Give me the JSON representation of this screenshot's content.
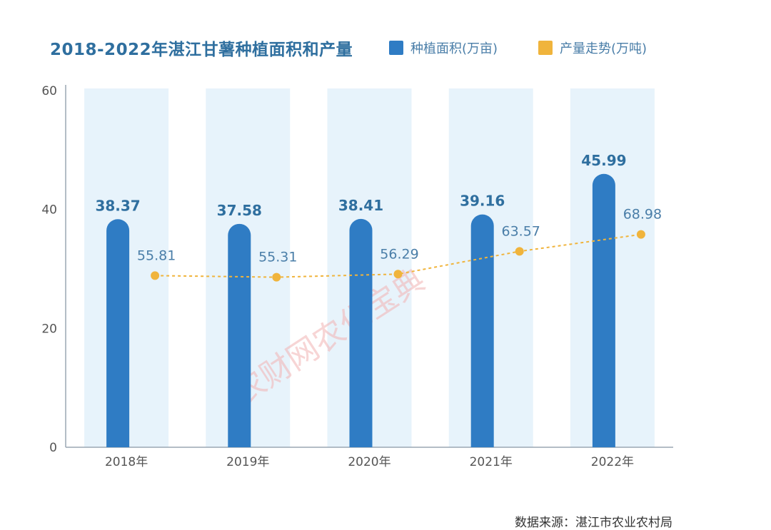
{
  "chart_data": {
    "type": "bar",
    "title": "2018-2022年湛江甘薯种植面积和产量",
    "categories": [
      "2018年",
      "2019年",
      "2020年",
      "2021年",
      "2022年"
    ],
    "series": [
      {
        "name": "种植面积(万亩)",
        "type": "bar",
        "values": [
          38.37,
          37.58,
          38.41,
          39.16,
          45.99
        ],
        "color": "#2f7cc4"
      },
      {
        "name": "产量走势(万吨)",
        "type": "line",
        "values": [
          55.81,
          55.31,
          56.29,
          63.57,
          68.98
        ],
        "color": "#f0b43c"
      }
    ],
    "yticks": [
      "0",
      "20",
      "40",
      "60"
    ],
    "ylim": [
      0,
      60
    ],
    "legend_position": "top-right",
    "watermark": "农财网农化宝典",
    "source": "数据来源：湛江市农业农村局"
  },
  "colors": {
    "title": "#2f6f9f",
    "bar": "#2f7cc4",
    "line": "#f0b43c",
    "column_background": "#e7f3fb",
    "axis": "#9aa7b3"
  }
}
